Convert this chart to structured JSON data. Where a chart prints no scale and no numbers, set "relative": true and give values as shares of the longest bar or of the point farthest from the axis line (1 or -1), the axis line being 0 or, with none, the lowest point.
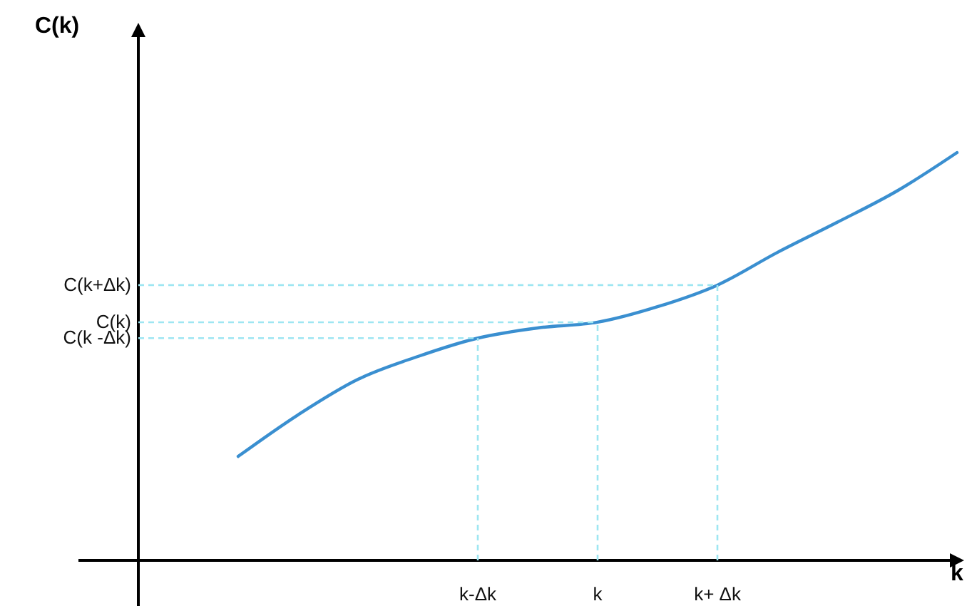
{
  "chart_data": {
    "type": "line",
    "relative": true,
    "xlabel": "k",
    "categories": [
      null,
      null,
      null,
      null,
      "k-Δk",
      null,
      "k",
      null,
      "k+ Δk",
      null,
      null,
      null,
      null
    ],
    "series": [
      {
        "color": "#3a8fd0",
        "values": [
          0.255,
          0.357,
          0.444,
          0.5,
          0.545,
          0.57,
          0.584,
          0.622,
          0.675,
          0.755,
          0.829,
          0.906,
          1.0
        ]
      }
    ],
    "annotations": [
      "C(k)",
      {
        "text": "C(k -Δk)",
        "x": "k-Δk",
        "y": 0.545
      },
      {
        "text": "C(k)",
        "x": "k",
        "y": 0.584
      },
      {
        "text": "C(k+Δk)",
        "x": "k+ Δk",
        "y": 0.675
      }
    ],
    "tick_labels": "x"
  }
}
